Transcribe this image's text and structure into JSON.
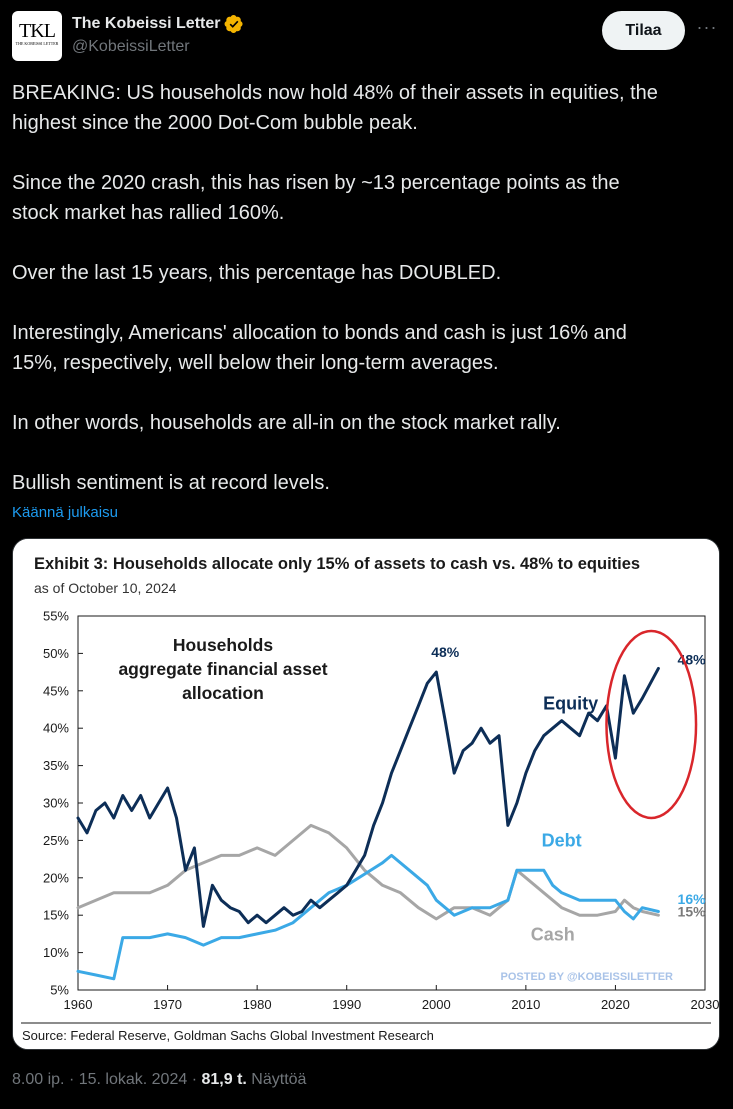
{
  "author": {
    "display_name": "The Kobeissi Letter",
    "handle": "@KobeissiLetter",
    "avatar_text": "TKL",
    "avatar_subtext": "THE KOBEISSI LETTER"
  },
  "actions": {
    "subscribe_label": "Tilaa",
    "more_label": "···"
  },
  "tweet": {
    "paragraphs": [
      [
        "BREAKING: US households now hold 48% of their assets in equities, the",
        "highest since the 2000 Dot-Com bubble peak."
      ],
      [
        "Since the 2020 crash, this has risen by ~13 percentage points as the",
        "stock market has rallied 160%."
      ],
      [
        "Over the last 15 years, this percentage has DOUBLED."
      ],
      [
        "Interestingly, Americans' allocation to bonds and cash is just 16% and",
        "15%, respectively, well below their long-term averages."
      ],
      [
        "In other words, households are all-in on the stock market rally."
      ],
      [
        "Bullish sentiment is at record levels."
      ]
    ],
    "translate_label": "Käännä julkaisu"
  },
  "meta": {
    "time": "8.00 ip.",
    "date": "15. lokak. 2024",
    "views_count": "81,9 t.",
    "views_label": "Näyttöä",
    "sep": "·"
  },
  "colors": {
    "equity": "#0d2e57",
    "debt": "#3ba9e6",
    "cash": "#a6a6a6",
    "highlight_circle": "#d9262b",
    "verified_badge": "#f4b400",
    "link": "#1d9bf0"
  },
  "chart_data": {
    "type": "line",
    "title": "Exhibit 3: Households allocate only 15% of assets to cash vs. 48% to equities",
    "subtitle": "as of October 10, 2024",
    "inner_title": [
      "Households",
      "aggregate financial asset",
      "allocation"
    ],
    "source": "Source: Federal Reserve, Goldman Sachs Global Investment Research",
    "watermark": "POSTED BY @KOBEISSILETTER",
    "x_ticks": [
      "1960",
      "1970",
      "1980",
      "1990",
      "2000",
      "2010",
      "2020",
      "2030"
    ],
    "y_ticks": [
      "5%",
      "10%",
      "15%",
      "20%",
      "25%",
      "30%",
      "35%",
      "40%",
      "45%",
      "50%",
      "55%"
    ],
    "xlim": [
      1960,
      2030
    ],
    "ylim": [
      5,
      55
    ],
    "grid": false,
    "annotations": [
      {
        "text": "48%",
        "x": 2001,
        "y": 49.5,
        "series": "Equity"
      },
      {
        "text": "48%",
        "x": 2028.5,
        "y": 48.5,
        "series": "Equity"
      },
      {
        "text": "16%",
        "x": 2028.5,
        "y": 16.5,
        "series": "Debt"
      },
      {
        "text": "15%",
        "x": 2028.5,
        "y": 14.8,
        "series": "Cash"
      }
    ],
    "highlight": {
      "shape": "ellipse",
      "x_range": [
        2019,
        2029
      ],
      "y_range": [
        28,
        53
      ]
    },
    "series": [
      {
        "name": "Equity",
        "label_pos": {
          "x": 2015,
          "y": 42.5
        },
        "x": [
          1960,
          1961,
          1962,
          1963,
          1964,
          1965,
          1966,
          1967,
          1968,
          1969,
          1970,
          1971,
          1972,
          1973,
          1974,
          1975,
          1976,
          1977,
          1978,
          1979,
          1980,
          1981,
          1982,
          1983,
          1984,
          1985,
          1986,
          1987,
          1988,
          1989,
          1990,
          1991,
          1992,
          1993,
          1994,
          1995,
          1996,
          1997,
          1998,
          1999,
          2000,
          2001,
          2002,
          2003,
          2004,
          2005,
          2006,
          2007,
          2008,
          2009,
          2010,
          2011,
          2012,
          2013,
          2014,
          2015,
          2016,
          2017,
          2018,
          2019,
          2020,
          2021,
          2022,
          2023,
          2024.8
        ],
        "values": [
          28,
          26,
          29,
          30,
          28,
          31,
          29,
          31,
          28,
          30,
          32,
          28,
          21,
          24,
          13.5,
          19,
          17,
          16,
          15.5,
          14,
          15,
          14,
          15,
          16,
          15,
          15.5,
          17,
          16,
          17,
          18,
          19,
          21,
          23,
          27,
          30,
          34,
          37,
          40,
          43,
          46,
          47.5,
          41,
          34,
          37,
          38,
          40,
          38,
          39,
          27,
          30,
          34,
          37,
          39,
          40,
          41,
          40,
          39,
          42,
          41,
          43,
          36,
          47,
          42,
          44,
          48
        ]
      },
      {
        "name": "Debt",
        "label_pos": {
          "x": 2014,
          "y": 24.2
        },
        "x": [
          1960,
          1962,
          1964,
          1965,
          1966,
          1968,
          1970,
          1972,
          1974,
          1976,
          1978,
          1980,
          1982,
          1984,
          1986,
          1988,
          1990,
          1992,
          1994,
          1995,
          1997,
          1999,
          2000,
          2002,
          2004,
          2006,
          2008,
          2009,
          2010,
          2012,
          2013,
          2014,
          2016,
          2018,
          2020,
          2021,
          2022,
          2023,
          2024.8
        ],
        "values": [
          7.5,
          7,
          6.5,
          12,
          12,
          12,
          12.5,
          12,
          11,
          12,
          12,
          12.5,
          13,
          14,
          16,
          18,
          19,
          20.5,
          22,
          23,
          21,
          19,
          17,
          15,
          16,
          16,
          17,
          21,
          21,
          21,
          19,
          18,
          17,
          17,
          17,
          15.5,
          14.5,
          16,
          15.5
        ]
      },
      {
        "name": "Cash",
        "label_pos": {
          "x": 2013,
          "y": 11.6
        },
        "x": [
          1960,
          1962,
          1964,
          1966,
          1968,
          1970,
          1972,
          1974,
          1976,
          1978,
          1980,
          1982,
          1984,
          1986,
          1988,
          1990,
          1992,
          1994,
          1996,
          1998,
          2000,
          2002,
          2004,
          2006,
          2008,
          2009,
          2010,
          2012,
          2014,
          2016,
          2018,
          2020,
          2021,
          2022,
          2023,
          2024.8
        ],
        "values": [
          16,
          17,
          18,
          18,
          18,
          19,
          21,
          22,
          23,
          23,
          24,
          23,
          25,
          27,
          26,
          24,
          21,
          19,
          18,
          16,
          14.5,
          16,
          16,
          15,
          17,
          21,
          20,
          18,
          16,
          15,
          15,
          15.5,
          17,
          16,
          15.5,
          15
        ]
      }
    ]
  }
}
